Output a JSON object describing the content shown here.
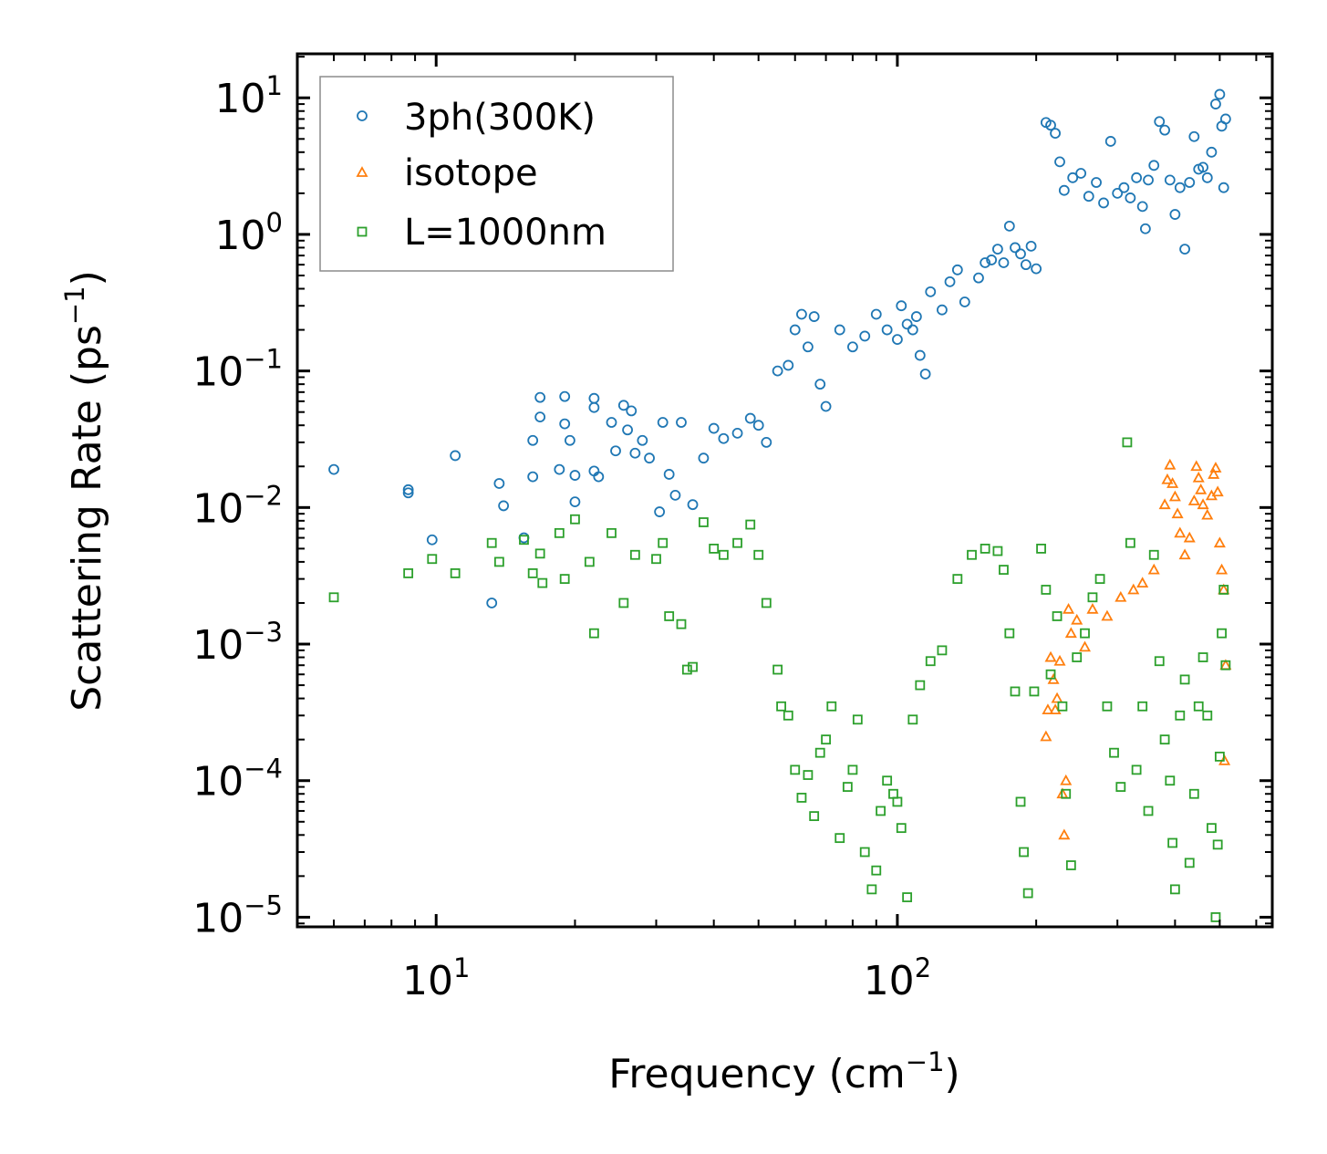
{
  "chart_data": {
    "type": "scatter",
    "title": "",
    "xlabel": "Frequency",
    "xlabel_unit_base": "cm",
    "xlabel_unit_exponent": "−1",
    "ylabel": "Scattering Rate",
    "ylabel_unit_base": "ps",
    "ylabel_unit_exponent": "−1",
    "xscale": "log",
    "yscale": "log",
    "xlim": [
      5,
      650
    ],
    "ylim": [
      8.5e-06,
      21
    ],
    "x_ticks": [
      {
        "base": "10",
        "exp": "1",
        "value": 10
      },
      {
        "base": "10",
        "exp": "2",
        "value": 100
      }
    ],
    "y_ticks": [
      {
        "base": "10",
        "exp": "1",
        "value": 10
      },
      {
        "base": "10",
        "exp": "0",
        "value": 1
      },
      {
        "base": "10",
        "exp": "−1",
        "value": 0.1
      },
      {
        "base": "10",
        "exp": "−2",
        "value": 0.01
      },
      {
        "base": "10",
        "exp": "−3",
        "value": 0.001
      },
      {
        "base": "10",
        "exp": "−4",
        "value": 0.0001
      },
      {
        "base": "10",
        "exp": "−5",
        "value": 1e-05
      }
    ],
    "legend_position": "top-left",
    "series": [
      {
        "name": "3ph(300K)",
        "marker": "circle",
        "color": "#1f77b4",
        "points": [
          [
            6.0,
            0.019
          ],
          [
            8.7,
            0.0135
          ],
          [
            8.7,
            0.0128
          ],
          [
            9.8,
            0.0058
          ],
          [
            11.0,
            0.024
          ],
          [
            13.2,
            0.002
          ],
          [
            13.7,
            0.015
          ],
          [
            14.0,
            0.0103
          ],
          [
            15.5,
            0.006
          ],
          [
            16.2,
            0.031
          ],
          [
            16.2,
            0.0168
          ],
          [
            16.8,
            0.064
          ],
          [
            16.8,
            0.046
          ],
          [
            18.5,
            0.019
          ],
          [
            19.0,
            0.065
          ],
          [
            19.0,
            0.041
          ],
          [
            19.5,
            0.031
          ],
          [
            20.0,
            0.0172
          ],
          [
            20.0,
            0.011
          ],
          [
            22.0,
            0.063
          ],
          [
            22.0,
            0.054
          ],
          [
            22.0,
            0.0185
          ],
          [
            22.5,
            0.0168
          ],
          [
            24.0,
            0.042
          ],
          [
            24.5,
            0.026
          ],
          [
            25.5,
            0.056
          ],
          [
            26.0,
            0.037
          ],
          [
            26.5,
            0.051
          ],
          [
            27.0,
            0.025
          ],
          [
            28.0,
            0.031
          ],
          [
            29.0,
            0.023
          ],
          [
            30.5,
            0.0093
          ],
          [
            31.0,
            0.042
          ],
          [
            32.0,
            0.0175
          ],
          [
            33.0,
            0.0123
          ],
          [
            34.0,
            0.042
          ],
          [
            36.0,
            0.0105
          ],
          [
            38.0,
            0.023
          ],
          [
            40.0,
            0.038
          ],
          [
            42.0,
            0.032
          ],
          [
            45.0,
            0.035
          ],
          [
            48.0,
            0.045
          ],
          [
            50.0,
            0.04
          ],
          [
            52.0,
            0.03
          ],
          [
            55.0,
            0.1
          ],
          [
            58.0,
            0.11
          ],
          [
            60.0,
            0.2
          ],
          [
            62.0,
            0.26
          ],
          [
            64.0,
            0.15
          ],
          [
            66.0,
            0.25
          ],
          [
            68.0,
            0.08
          ],
          [
            70.0,
            0.055
          ],
          [
            75.0,
            0.2
          ],
          [
            80.0,
            0.15
          ],
          [
            85.0,
            0.18
          ],
          [
            90.0,
            0.26
          ],
          [
            95.0,
            0.2
          ],
          [
            100.0,
            0.17
          ],
          [
            102.0,
            0.3
          ],
          [
            105.0,
            0.22
          ],
          [
            108.0,
            0.2
          ],
          [
            110.0,
            0.25
          ],
          [
            112.0,
            0.13
          ],
          [
            115.0,
            0.095
          ],
          [
            118.0,
            0.38
          ],
          [
            125.0,
            0.28
          ],
          [
            130.0,
            0.45
          ],
          [
            135.0,
            0.55
          ],
          [
            140.0,
            0.32
          ],
          [
            150.0,
            0.48
          ],
          [
            155.0,
            0.62
          ],
          [
            160.0,
            0.65
          ],
          [
            165.0,
            0.78
          ],
          [
            170.0,
            0.62
          ],
          [
            175.0,
            1.15
          ],
          [
            180.0,
            0.8
          ],
          [
            185.0,
            0.72
          ],
          [
            190.0,
            0.6
          ],
          [
            195.0,
            0.82
          ],
          [
            200.0,
            0.56
          ],
          [
            210.0,
            6.6
          ],
          [
            215.0,
            6.3
          ],
          [
            220.0,
            5.5
          ],
          [
            225.0,
            3.4
          ],
          [
            230.0,
            2.1
          ],
          [
            240.0,
            2.6
          ],
          [
            250.0,
            2.8
          ],
          [
            260.0,
            1.9
          ],
          [
            270.0,
            2.4
          ],
          [
            280.0,
            1.7
          ],
          [
            290.0,
            4.8
          ],
          [
            300.0,
            2.0
          ],
          [
            310.0,
            2.2
          ],
          [
            320.0,
            1.85
          ],
          [
            330.0,
            2.6
          ],
          [
            340.0,
            1.6
          ],
          [
            345.0,
            1.1
          ],
          [
            350.0,
            2.5
          ],
          [
            360.0,
            3.2
          ],
          [
            370.0,
            6.7
          ],
          [
            380.0,
            5.8
          ],
          [
            390.0,
            2.5
          ],
          [
            400.0,
            1.4
          ],
          [
            410.0,
            2.2
          ],
          [
            420.0,
            0.78
          ],
          [
            430.0,
            2.4
          ],
          [
            440.0,
            5.2
          ],
          [
            450.0,
            3.0
          ],
          [
            460.0,
            3.1
          ],
          [
            470.0,
            2.6
          ],
          [
            480.0,
            4.0
          ],
          [
            490.0,
            9.0
          ],
          [
            500.0,
            10.6
          ],
          [
            505.0,
            6.2
          ],
          [
            510.0,
            2.2
          ],
          [
            515.0,
            7.0
          ]
        ]
      },
      {
        "name": "isotope",
        "marker": "triangle",
        "color": "#ff7f0e",
        "points": [
          [
            210.0,
            0.00021
          ],
          [
            212.0,
            0.00033
          ],
          [
            215.0,
            0.0008
          ],
          [
            218.0,
            0.00055
          ],
          [
            220.0,
            0.00033
          ],
          [
            222.0,
            0.0004
          ],
          [
            225.0,
            0.00075
          ],
          [
            228.0,
            8e-05
          ],
          [
            230.0,
            4e-05
          ],
          [
            232.0,
            0.0001
          ],
          [
            235.0,
            0.0018
          ],
          [
            238.0,
            0.0012
          ],
          [
            245.0,
            0.0015
          ],
          [
            255.0,
            0.00095
          ],
          [
            265.0,
            0.0018
          ],
          [
            285.0,
            0.0016
          ],
          [
            305.0,
            0.0022
          ],
          [
            325.0,
            0.0025
          ],
          [
            340.0,
            0.0028
          ],
          [
            360.0,
            0.0035
          ],
          [
            380.0,
            0.0105
          ],
          [
            385.0,
            0.016
          ],
          [
            390.0,
            0.0205
          ],
          [
            395.0,
            0.015
          ],
          [
            400.0,
            0.012
          ],
          [
            405.0,
            0.009
          ],
          [
            410.0,
            0.0065
          ],
          [
            420.0,
            0.0045
          ],
          [
            430.0,
            0.006
          ],
          [
            440.0,
            0.0112
          ],
          [
            445.0,
            0.02
          ],
          [
            450.0,
            0.0165
          ],
          [
            455.0,
            0.0135
          ],
          [
            460.0,
            0.0105
          ],
          [
            470.0,
            0.0088
          ],
          [
            480.0,
            0.0122
          ],
          [
            485.0,
            0.0175
          ],
          [
            490.0,
            0.0195
          ],
          [
            495.0,
            0.013
          ],
          [
            500.0,
            0.0055
          ],
          [
            505.0,
            0.0035
          ],
          [
            510.0,
            0.0025
          ],
          [
            512.0,
            0.00014
          ],
          [
            515.0,
            0.0007
          ]
        ]
      },
      {
        "name": "L=1000nm",
        "marker": "square",
        "color": "#2ca02c",
        "points": [
          [
            6.0,
            0.0022
          ],
          [
            8.7,
            0.0033
          ],
          [
            9.8,
            0.0042
          ],
          [
            11.0,
            0.0033
          ],
          [
            13.2,
            0.0055
          ],
          [
            13.7,
            0.004
          ],
          [
            15.5,
            0.0058
          ],
          [
            16.2,
            0.0033
          ],
          [
            16.8,
            0.0046
          ],
          [
            17.0,
            0.0028
          ],
          [
            18.5,
            0.0065
          ],
          [
            19.0,
            0.003
          ],
          [
            20.0,
            0.0082
          ],
          [
            21.5,
            0.004
          ],
          [
            22.0,
            0.0012
          ],
          [
            24.0,
            0.0065
          ],
          [
            25.5,
            0.002
          ],
          [
            27.0,
            0.0045
          ],
          [
            30.0,
            0.0042
          ],
          [
            31.0,
            0.0055
          ],
          [
            32.0,
            0.0016
          ],
          [
            34.0,
            0.0014
          ],
          [
            35.0,
            0.00065
          ],
          [
            36.0,
            0.00068
          ],
          [
            38.0,
            0.0078
          ],
          [
            40.0,
            0.005
          ],
          [
            42.0,
            0.0045
          ],
          [
            45.0,
            0.0055
          ],
          [
            48.0,
            0.0075
          ],
          [
            50.0,
            0.0045
          ],
          [
            52.0,
            0.002
          ],
          [
            55.0,
            0.00065
          ],
          [
            56.0,
            0.00035
          ],
          [
            58.0,
            0.0003
          ],
          [
            60.0,
            0.00012
          ],
          [
            62.0,
            7.5e-05
          ],
          [
            64.0,
            0.00011
          ],
          [
            66.0,
            5.5e-05
          ],
          [
            68.0,
            0.00016
          ],
          [
            70.0,
            0.0002
          ],
          [
            72.0,
            0.00035
          ],
          [
            75.0,
            3.8e-05
          ],
          [
            78.0,
            9e-05
          ],
          [
            80.0,
            0.00012
          ],
          [
            82.0,
            0.00028
          ],
          [
            85.0,
            3e-05
          ],
          [
            88.0,
            1.6e-05
          ],
          [
            90.0,
            2.2e-05
          ],
          [
            92.0,
            6e-05
          ],
          [
            95.0,
            0.0001
          ],
          [
            98.0,
            8e-05
          ],
          [
            100.0,
            7e-05
          ],
          [
            102.0,
            4.5e-05
          ],
          [
            105.0,
            1.4e-05
          ],
          [
            108.0,
            0.00028
          ],
          [
            112.0,
            0.0005
          ],
          [
            118.0,
            0.00075
          ],
          [
            125.0,
            0.0009
          ],
          [
            135.0,
            0.003
          ],
          [
            145.0,
            0.0045
          ],
          [
            155.0,
            0.005
          ],
          [
            165.0,
            0.0048
          ],
          [
            170.0,
            0.0035
          ],
          [
            175.0,
            0.0012
          ],
          [
            180.0,
            0.00045
          ],
          [
            185.0,
            7e-05
          ],
          [
            188.0,
            3e-05
          ],
          [
            192.0,
            1.5e-05
          ],
          [
            198.0,
            0.00045
          ],
          [
            205.0,
            0.005
          ],
          [
            210.0,
            0.0025
          ],
          [
            215.0,
            0.0006
          ],
          [
            222.0,
            0.0016
          ],
          [
            228.0,
            0.00035
          ],
          [
            232.0,
            8e-05
          ],
          [
            238.0,
            2.4e-05
          ],
          [
            245.0,
            0.0008
          ],
          [
            255.0,
            0.0012
          ],
          [
            265.0,
            0.0022
          ],
          [
            275.0,
            0.003
          ],
          [
            285.0,
            0.00035
          ],
          [
            295.0,
            0.00016
          ],
          [
            305.0,
            9e-05
          ],
          [
            315.0,
            0.03
          ],
          [
            320.0,
            0.0055
          ],
          [
            330.0,
            0.00012
          ],
          [
            340.0,
            0.00035
          ],
          [
            350.0,
            6e-05
          ],
          [
            360.0,
            0.0045
          ],
          [
            370.0,
            0.00075
          ],
          [
            380.0,
            0.0002
          ],
          [
            390.0,
            0.0001
          ],
          [
            395.0,
            3.5e-05
          ],
          [
            400.0,
            1.6e-05
          ],
          [
            410.0,
            0.0003
          ],
          [
            420.0,
            0.00055
          ],
          [
            430.0,
            2.5e-05
          ],
          [
            440.0,
            8e-05
          ],
          [
            450.0,
            0.00035
          ],
          [
            460.0,
            0.0008
          ],
          [
            470.0,
            0.0003
          ],
          [
            480.0,
            4.5e-05
          ],
          [
            490.0,
            1e-05
          ],
          [
            495.0,
            3.4e-05
          ],
          [
            500.0,
            0.00015
          ],
          [
            505.0,
            0.0012
          ],
          [
            510.0,
            0.0025
          ],
          [
            515.0,
            0.0007
          ]
        ]
      }
    ]
  }
}
